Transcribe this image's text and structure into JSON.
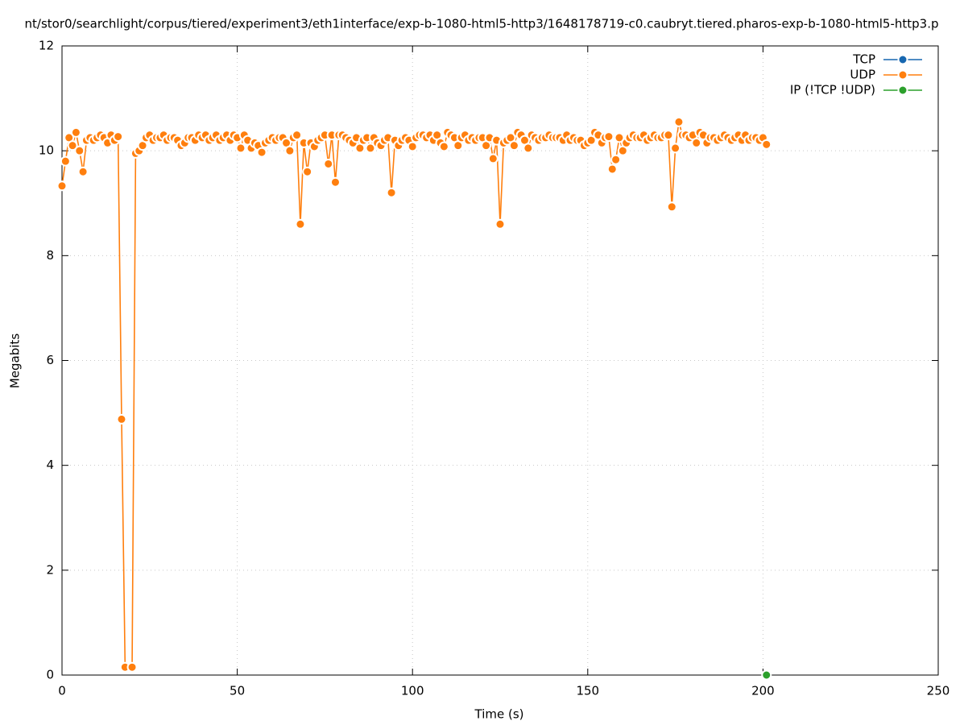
{
  "chart_data": {
    "type": "line",
    "title": "nt/stor0/searchlight/corpus/tiered/experiment3/eth1interface/exp-b-1080-html5-http3/1648178719-c0.caubryt.tiered.pharos-exp-b-1080-html5-http3.p",
    "xlabel": "Time (s)",
    "ylabel": "Megabits",
    "xlim": [
      0,
      250
    ],
    "xticks": [
      0,
      50,
      100,
      150,
      200,
      250
    ],
    "ylim": [
      0,
      12
    ],
    "yticks": [
      0,
      2,
      4,
      6,
      8,
      10,
      12
    ],
    "grid": true,
    "legend": "top-right",
    "series": [
      {
        "name": "TCP",
        "color": "#1767b0",
        "x": [],
        "values": []
      },
      {
        "name": "UDP",
        "color": "#ff7f0e",
        "x": [
          0,
          1,
          2,
          3,
          4,
          5,
          6,
          7,
          8,
          9,
          10,
          11,
          12,
          13,
          14,
          15,
          16,
          17,
          18,
          19,
          20,
          21,
          22,
          23,
          24,
          25,
          26,
          27,
          28,
          29,
          30,
          31,
          32,
          33,
          34,
          35,
          36,
          37,
          38,
          39,
          40,
          41,
          42,
          43,
          44,
          45,
          46,
          47,
          48,
          49,
          50,
          51,
          52,
          53,
          54,
          55,
          56,
          57,
          58,
          59,
          60,
          61,
          62,
          63,
          64,
          65,
          66,
          67,
          68,
          69,
          70,
          71,
          72,
          73,
          74,
          75,
          76,
          77,
          78,
          79,
          80,
          81,
          82,
          83,
          84,
          85,
          86,
          87,
          88,
          89,
          90,
          91,
          92,
          93,
          94,
          95,
          96,
          97,
          98,
          99,
          100,
          101,
          102,
          103,
          104,
          105,
          106,
          107,
          108,
          109,
          110,
          111,
          112,
          113,
          114,
          115,
          116,
          117,
          118,
          119,
          120,
          121,
          122,
          123,
          124,
          125,
          126,
          127,
          128,
          129,
          130,
          131,
          132,
          133,
          134,
          135,
          136,
          137,
          138,
          139,
          140,
          141,
          142,
          143,
          144,
          145,
          146,
          147,
          148,
          149,
          150,
          151,
          152,
          153,
          154,
          155,
          156,
          157,
          158,
          159,
          160,
          161,
          162,
          163,
          164,
          165,
          166,
          167,
          168,
          169,
          170,
          171,
          172,
          173,
          174,
          175,
          176,
          177,
          178,
          179,
          180,
          181,
          182,
          183,
          184,
          185,
          186,
          187,
          188,
          189,
          190,
          191,
          192,
          193,
          194,
          195,
          196,
          197,
          198,
          199,
          200,
          201
        ],
        "values": [
          9.33,
          9.8,
          10.25,
          10.1,
          10.35,
          10.0,
          9.6,
          10.2,
          10.25,
          10.2,
          10.25,
          10.3,
          10.25,
          10.15,
          10.3,
          10.2,
          10.27,
          4.88,
          0.15,
          null,
          0.15,
          9.95,
          10.0,
          10.1,
          10.25,
          10.3,
          10.2,
          10.25,
          10.25,
          10.3,
          10.2,
          10.25,
          10.25,
          10.2,
          10.1,
          10.15,
          10.25,
          10.25,
          10.2,
          10.3,
          10.25,
          10.3,
          10.2,
          10.25,
          10.3,
          10.2,
          10.25,
          10.3,
          10.2,
          10.3,
          10.25,
          10.05,
          10.3,
          10.2,
          10.05,
          10.15,
          10.1,
          9.97,
          10.15,
          10.2,
          10.25,
          10.2,
          10.25,
          10.25,
          10.15,
          10.0,
          10.25,
          10.3,
          8.6,
          10.15,
          9.6,
          10.15,
          10.08,
          10.2,
          10.25,
          10.3,
          9.75,
          10.3,
          9.4,
          10.3,
          10.3,
          10.25,
          10.2,
          10.15,
          10.25,
          10.05,
          10.2,
          10.25,
          10.05,
          10.25,
          10.15,
          10.1,
          10.2,
          10.25,
          9.2,
          10.2,
          10.1,
          10.2,
          10.25,
          10.2,
          10.08,
          10.25,
          10.3,
          10.3,
          10.25,
          10.3,
          10.2,
          10.3,
          10.15,
          10.08,
          10.35,
          10.3,
          10.25,
          10.1,
          10.25,
          10.3,
          10.2,
          10.25,
          10.2,
          10.25,
          10.25,
          10.1,
          10.25,
          9.85,
          10.2,
          8.6,
          10.15,
          10.2,
          10.25,
          10.1,
          10.35,
          10.3,
          10.2,
          10.05,
          10.3,
          10.25,
          10.2,
          10.25,
          10.25,
          10.3,
          10.25,
          10.25,
          10.25,
          10.2,
          10.3,
          10.2,
          10.25,
          10.2,
          10.2,
          10.1,
          10.15,
          10.2,
          10.35,
          10.3,
          10.15,
          10.25,
          10.27,
          9.65,
          9.83,
          10.25,
          10.0,
          10.15,
          10.25,
          10.3,
          10.25,
          10.25,
          10.3,
          10.2,
          10.25,
          10.3,
          10.25,
          10.25,
          10.3,
          10.3,
          8.93,
          10.05,
          10.55,
          10.3,
          10.3,
          10.25,
          10.3,
          10.15,
          10.35,
          10.3,
          10.15,
          10.25,
          10.25,
          10.2,
          10.25,
          10.3,
          10.25,
          10.2,
          10.25,
          10.3,
          10.2,
          10.3,
          10.2,
          10.25,
          10.25,
          10.2,
          10.25,
          10.12
        ]
      },
      {
        "name": "IP (!TCP  !UDP)",
        "color": "#2ca02c",
        "x": [
          201
        ],
        "values": [
          0
        ]
      }
    ]
  }
}
